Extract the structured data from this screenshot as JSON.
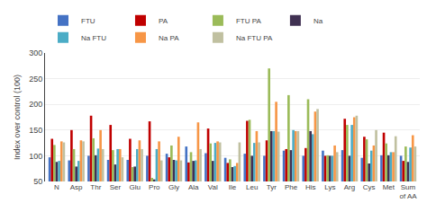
{
  "chart_data": {
    "type": "bar",
    "categories": [
      "N",
      "Asp",
      "Thr",
      "Ser",
      "Glu",
      "Pro",
      "Gly",
      "Ala",
      "Val",
      "Ile",
      "Leu",
      "Tyr",
      "Phe",
      "His",
      "Lys",
      "Arg",
      "Cys",
      "Met",
      "Sum\nof AA"
    ],
    "series": [
      {
        "name": "FTU",
        "color": "#4472C4",
        "values": [
          97,
          91,
          100,
          92,
          92,
          100,
          104,
          118,
          105,
          96,
          104,
          100,
          110,
          100,
          110,
          111,
          96,
          101,
          100
        ]
      },
      {
        "name": "PA",
        "color": "#C00000",
        "values": [
          133,
          150,
          178,
          160,
          133,
          167,
          97,
          87,
          153,
          86,
          168,
          130,
          113,
          115,
          100,
          172,
          137,
          145,
          90
        ]
      },
      {
        "name": "FTU PA",
        "color": "#9BBB59",
        "values": [
          121,
          113,
          134,
          111,
          78,
          57,
          120,
          107,
          124,
          93,
          170,
          270,
          218,
          210,
          101,
          160,
          132,
          124,
          118
        ]
      },
      {
        "name": "Na",
        "color": "#403152",
        "values": [
          88,
          79,
          101,
          83,
          79,
          54,
          92,
          90,
          90,
          78,
          100,
          148,
          111,
          148,
          100,
          100,
          85,
          101,
          88
        ]
      },
      {
        "name": "Na FTU",
        "color": "#4BACC6",
        "values": [
          90,
          90,
          114,
          113,
          113,
          113,
          91,
          91,
          125,
          80,
          125,
          148,
          150,
          142,
          100,
          160,
          110,
          107,
          116
        ]
      },
      {
        "name": "Na PA",
        "color": "#F79646",
        "values": [
          128,
          130,
          150,
          113,
          130,
          128,
          137,
          165,
          128,
          86,
          148,
          205,
          148,
          186,
          120,
          175,
          120,
          107,
          140
        ]
      },
      {
        "name": "Na FTU PA",
        "color": "#C0C0A0",
        "values": [
          126,
          128,
          113,
          97,
          113,
          91,
          91,
          113,
          126,
          126,
          126,
          147,
          148,
          191,
          107,
          178,
          150,
          138,
          118
        ]
      }
    ],
    "ylabel": "Index over control (100)",
    "ylim": [
      50,
      300
    ],
    "yticks": [
      50,
      100,
      150,
      200,
      250,
      300
    ],
    "grid": true,
    "legend": "upper left"
  }
}
